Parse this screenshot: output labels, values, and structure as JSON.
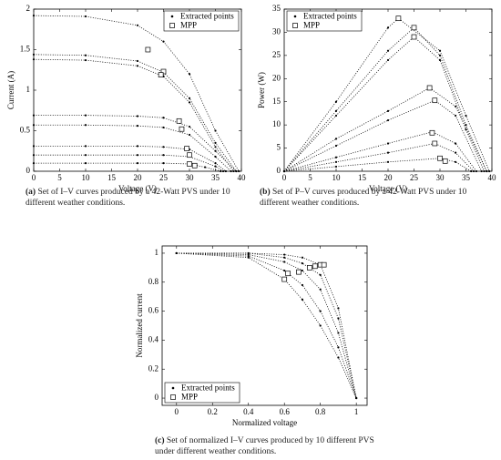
{
  "chart_data": [
    {
      "type": "line",
      "caption_label": "(a)",
      "caption": "Set of I–V curves produced by a 42-Watt PVS under 10 different weather conditions.",
      "x_label": "Voltage (V)",
      "y_label": "Current (A)",
      "xlim": [
        0,
        40
      ],
      "ylim": [
        0,
        2
      ],
      "xticks": [
        0,
        5,
        10,
        15,
        20,
        25,
        30,
        35,
        40
      ],
      "yticks": [
        0,
        0.5,
        1,
        1.5,
        2
      ],
      "legend": "upper right",
      "series": [
        {
          "name": "Extracted points",
          "color": "#000000",
          "curves": [
            {
              "x": [
                0,
                10,
                20,
                25,
                30,
                35,
                39.5
              ],
              "y": [
                1.92,
                1.91,
                1.8,
                1.6,
                1.2,
                0.5,
                0
              ]
            },
            {
              "x": [
                0,
                10,
                20,
                25,
                30,
                35,
                39
              ],
              "y": [
                1.44,
                1.43,
                1.36,
                1.22,
                0.9,
                0.35,
                0
              ]
            },
            {
              "x": [
                0,
                10,
                20,
                25,
                30,
                35,
                38.5
              ],
              "y": [
                1.38,
                1.37,
                1.3,
                1.17,
                0.85,
                0.3,
                0
              ]
            },
            {
              "x": [
                0,
                10,
                20,
                25,
                30,
                35,
                39
              ],
              "y": [
                0.69,
                0.69,
                0.68,
                0.66,
                0.55,
                0.25,
                0
              ]
            },
            {
              "x": [
                0,
                10,
                20,
                25,
                30,
                35,
                38
              ],
              "y": [
                0.57,
                0.57,
                0.56,
                0.54,
                0.45,
                0.18,
                0
              ]
            },
            {
              "x": [
                0,
                10,
                20,
                25,
                30,
                35,
                37
              ],
              "y": [
                0.31,
                0.31,
                0.31,
                0.3,
                0.27,
                0.1,
                0
              ]
            },
            {
              "x": [
                0,
                10,
                20,
                25,
                30,
                35,
                36.5
              ],
              "y": [
                0.2,
                0.2,
                0.2,
                0.2,
                0.18,
                0.06,
                0
              ]
            },
            {
              "x": [
                0,
                10,
                20,
                25,
                30,
                33,
                36
              ],
              "y": [
                0.1,
                0.1,
                0.1,
                0.1,
                0.09,
                0.05,
                0
              ]
            }
          ]
        },
        {
          "name": "MPP",
          "color": "#000000",
          "x": [
            22,
            25,
            24.5,
            28,
            28.5,
            29.5,
            30,
            30,
            31
          ],
          "y": [
            1.5,
            1.23,
            1.19,
            0.62,
            0.52,
            0.28,
            0.2,
            0.09,
            0.07
          ]
        }
      ]
    },
    {
      "type": "line",
      "caption_label": "(b)",
      "caption": "Set of P–V curves produced by a 42-Watt PVS under 10 different weather conditions.",
      "x_label": "Voltage (V)",
      "y_label": "Power (W)",
      "xlim": [
        0,
        40
      ],
      "ylim": [
        0,
        35
      ],
      "xticks": [
        0,
        5,
        10,
        15,
        20,
        25,
        30,
        35,
        40
      ],
      "yticks": [
        0,
        5,
        10,
        15,
        20,
        25,
        30,
        35
      ],
      "legend": "upper left",
      "series": [
        {
          "name": "Extracted points",
          "color": "#000000",
          "curves": [
            {
              "x": [
                0,
                10,
                20,
                22,
                30,
                35,
                39.5
              ],
              "y": [
                0,
                15,
                31,
                33,
                26,
                12,
                0
              ]
            },
            {
              "x": [
                0,
                10,
                20,
                25,
                30,
                35,
                39
              ],
              "y": [
                0,
                13,
                26,
                31,
                25,
                10,
                0
              ]
            },
            {
              "x": [
                0,
                10,
                20,
                25,
                30,
                35,
                38.5
              ],
              "y": [
                0,
                12,
                24,
                29,
                24,
                9,
                0
              ]
            },
            {
              "x": [
                0,
                10,
                20,
                28,
                33,
                39
              ],
              "y": [
                0,
                7,
                13,
                18,
                14,
                0
              ]
            },
            {
              "x": [
                0,
                10,
                20,
                29,
                33,
                38
              ],
              "y": [
                0,
                5.5,
                11,
                15.3,
                12,
                0
              ]
            },
            {
              "x": [
                0,
                10,
                20,
                28.5,
                33,
                37
              ],
              "y": [
                0,
                3,
                6,
                8.5,
                6,
                0
              ]
            },
            {
              "x": [
                0,
                10,
                20,
                29,
                33,
                36.5
              ],
              "y": [
                0,
                2,
                4,
                6,
                4,
                0
              ]
            },
            {
              "x": [
                0,
                10,
                20,
                30,
                33,
                36
              ],
              "y": [
                0,
                1,
                2,
                2.8,
                2,
                0
              ]
            }
          ]
        },
        {
          "name": "MPP",
          "color": "#000000",
          "x": [
            22,
            25,
            25,
            28,
            29,
            28.5,
            29,
            30,
            31
          ],
          "y": [
            33,
            31,
            29,
            18,
            15.3,
            8.3,
            6,
            2.8,
            2.2
          ]
        }
      ]
    },
    {
      "type": "line",
      "caption_label": "(c)",
      "caption": "Set of normalized I–V curves produced by 10 different PVS under different weather conditions.",
      "x_label": "Normalized voltage",
      "y_label": "Normalized current",
      "xlim": [
        -0.08,
        1.06
      ],
      "ylim": [
        -0.05,
        1.05
      ],
      "xticks": [
        0,
        0.2,
        0.4,
        0.6,
        0.8,
        1
      ],
      "yticks": [
        0,
        0.2,
        0.4,
        0.6,
        0.8,
        1
      ],
      "legend": "lower left",
      "series": [
        {
          "name": "Extracted points",
          "color": "#000000",
          "curves": [
            {
              "x": [
                0,
                0.4,
                0.6,
                0.7,
                0.8,
                0.9,
                1
              ],
              "y": [
                1,
                0.97,
                0.82,
                0.68,
                0.5,
                0.28,
                0
              ]
            },
            {
              "x": [
                0,
                0.4,
                0.6,
                0.7,
                0.8,
                0.9,
                1
              ],
              "y": [
                1,
                0.98,
                0.88,
                0.78,
                0.6,
                0.35,
                0
              ]
            },
            {
              "x": [
                0,
                0.4,
                0.6,
                0.7,
                0.8,
                0.9,
                1
              ],
              "y": [
                1,
                0.99,
                0.94,
                0.88,
                0.75,
                0.45,
                0
              ]
            },
            {
              "x": [
                0,
                0.4,
                0.6,
                0.7,
                0.8,
                0.9,
                1
              ],
              "y": [
                1,
                1,
                0.97,
                0.93,
                0.85,
                0.55,
                0
              ]
            },
            {
              "x": [
                0,
                0.4,
                0.6,
                0.7,
                0.8,
                0.9,
                1
              ],
              "y": [
                1,
                1,
                0.99,
                0.97,
                0.92,
                0.62,
                0
              ]
            }
          ]
        },
        {
          "name": "MPP",
          "color": "#000000",
          "x": [
            0.6,
            0.62,
            0.68,
            0.74,
            0.77,
            0.8,
            0.82
          ],
          "y": [
            0.82,
            0.86,
            0.87,
            0.9,
            0.91,
            0.92,
            0.92
          ]
        }
      ]
    }
  ]
}
